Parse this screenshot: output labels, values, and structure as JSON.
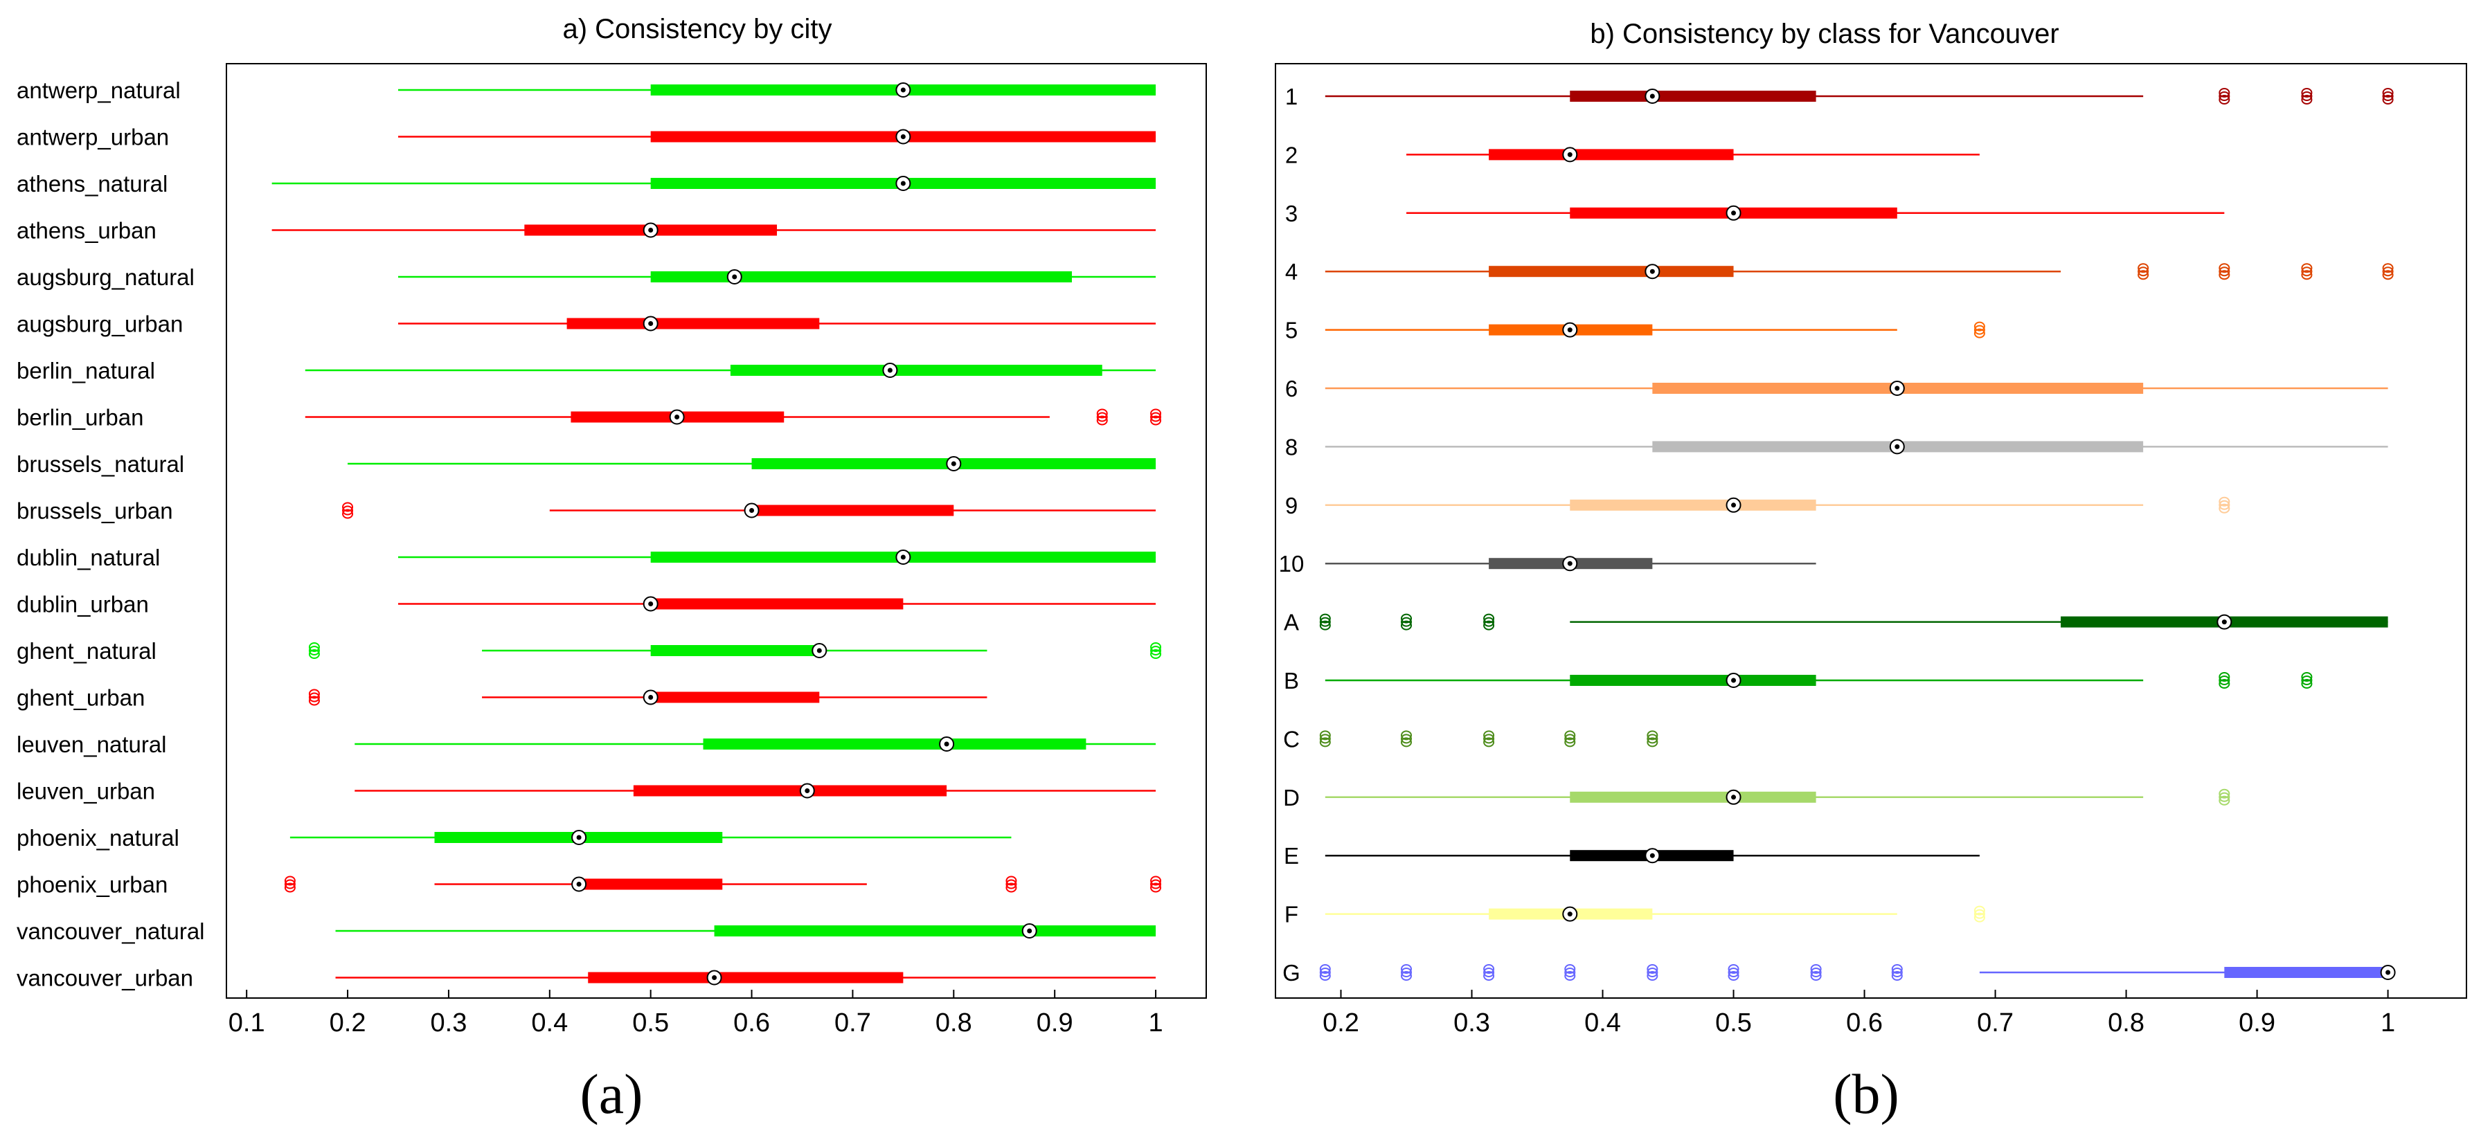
{
  "chart_data": [
    {
      "type": "boxplot-horizontal",
      "title": "a) Consistency by city",
      "panel_label": "(a)",
      "xlim": [
        0.08,
        1.05
      ],
      "xticks": [
        0.1,
        0.2,
        0.3,
        0.4,
        0.5,
        0.6,
        0.7,
        0.8,
        0.9,
        1
      ],
      "xtick_labels": [
        "0.1",
        "0.2",
        "0.3",
        "0.4",
        "0.5",
        "0.6",
        "0.7",
        "0.8",
        "0.9",
        "1"
      ],
      "rows": [
        {
          "label": "antwerp_natural",
          "color": "#00ee00",
          "whisker_lo": 0.25,
          "q1": 0.5,
          "median": 0.75,
          "q3": 1.0,
          "whisker_hi": 1.0,
          "outliers": []
        },
        {
          "label": "antwerp_urban",
          "color": "#ff0000",
          "whisker_lo": 0.25,
          "q1": 0.5,
          "median": 0.75,
          "q3": 1.0,
          "whisker_hi": 1.0,
          "outliers": []
        },
        {
          "label": "athens_natural",
          "color": "#00ee00",
          "whisker_lo": 0.125,
          "q1": 0.5,
          "median": 0.75,
          "q3": 1.0,
          "whisker_hi": 1.0,
          "outliers": []
        },
        {
          "label": "athens_urban",
          "color": "#ff0000",
          "whisker_lo": 0.125,
          "q1": 0.375,
          "median": 0.5,
          "q3": 0.625,
          "whisker_hi": 1.0,
          "outliers": []
        },
        {
          "label": "augsburg_natural",
          "color": "#00ee00",
          "whisker_lo": 0.25,
          "q1": 0.5,
          "median": 0.583,
          "q3": 0.917,
          "whisker_hi": 1.0,
          "outliers": []
        },
        {
          "label": "augsburg_urban",
          "color": "#ff0000",
          "whisker_lo": 0.25,
          "q1": 0.417,
          "median": 0.5,
          "q3": 0.667,
          "whisker_hi": 1.0,
          "outliers": []
        },
        {
          "label": "berlin_natural",
          "color": "#00ee00",
          "whisker_lo": 0.158,
          "q1": 0.579,
          "median": 0.737,
          "q3": 0.947,
          "whisker_hi": 1.0,
          "outliers": []
        },
        {
          "label": "berlin_urban",
          "color": "#ff0000",
          "whisker_lo": 0.158,
          "q1": 0.421,
          "median": 0.526,
          "q3": 0.632,
          "whisker_hi": 0.895,
          "outliers": [
            0.947,
            1.0
          ]
        },
        {
          "label": "brussels_natural",
          "color": "#00ee00",
          "whisker_lo": 0.2,
          "q1": 0.6,
          "median": 0.8,
          "q3": 1.0,
          "whisker_hi": 1.0,
          "outliers": []
        },
        {
          "label": "brussels_urban",
          "color": "#ff0000",
          "whisker_lo": 0.4,
          "q1": 0.6,
          "median": 0.6,
          "q3": 0.8,
          "whisker_hi": 1.0,
          "outliers": [
            0.2
          ]
        },
        {
          "label": "dublin_natural",
          "color": "#00ee00",
          "whisker_lo": 0.25,
          "q1": 0.5,
          "median": 0.75,
          "q3": 1.0,
          "whisker_hi": 1.0,
          "outliers": []
        },
        {
          "label": "dublin_urban",
          "color": "#ff0000",
          "whisker_lo": 0.25,
          "q1": 0.5,
          "median": 0.5,
          "q3": 0.75,
          "whisker_hi": 1.0,
          "outliers": []
        },
        {
          "label": "ghent_natural",
          "color": "#00ee00",
          "whisker_lo": 0.333,
          "q1": 0.5,
          "median": 0.667,
          "q3": 0.667,
          "whisker_hi": 0.833,
          "outliers": [
            0.167,
            1.0
          ]
        },
        {
          "label": "ghent_urban",
          "color": "#ff0000",
          "whisker_lo": 0.333,
          "q1": 0.5,
          "median": 0.5,
          "q3": 0.667,
          "whisker_hi": 0.833,
          "outliers": [
            0.167
          ]
        },
        {
          "label": "leuven_natural",
          "color": "#00ee00",
          "whisker_lo": 0.207,
          "q1": 0.552,
          "median": 0.793,
          "q3": 0.931,
          "whisker_hi": 1.0,
          "outliers": []
        },
        {
          "label": "leuven_urban",
          "color": "#ff0000",
          "whisker_lo": 0.207,
          "q1": 0.483,
          "median": 0.655,
          "q3": 0.793,
          "whisker_hi": 1.0,
          "outliers": []
        },
        {
          "label": "phoenix_natural",
          "color": "#00ee00",
          "whisker_lo": 0.143,
          "q1": 0.286,
          "median": 0.429,
          "q3": 0.571,
          "whisker_hi": 0.857,
          "outliers": []
        },
        {
          "label": "phoenix_urban",
          "color": "#ff0000",
          "whisker_lo": 0.286,
          "q1": 0.429,
          "median": 0.429,
          "q3": 0.571,
          "whisker_hi": 0.714,
          "outliers": [
            0.143,
            0.857,
            1.0
          ]
        },
        {
          "label": "vancouver_natural",
          "color": "#00ee00",
          "whisker_lo": 0.188,
          "q1": 0.563,
          "median": 0.875,
          "q3": 1.0,
          "whisker_hi": 1.0,
          "outliers": []
        },
        {
          "label": "vancouver_urban",
          "color": "#ff0000",
          "whisker_lo": 0.188,
          "q1": 0.438,
          "median": 0.563,
          "q3": 0.75,
          "whisker_hi": 1.0,
          "outliers": []
        }
      ]
    },
    {
      "type": "boxplot-horizontal",
      "title": "b) Consistency by class for Vancouver",
      "panel_label": "(b)",
      "xlim": [
        0.15,
        1.06
      ],
      "xticks": [
        0.2,
        0.3,
        0.4,
        0.5,
        0.6,
        0.7,
        0.8,
        0.9,
        1
      ],
      "xtick_labels": [
        "0.2",
        "0.3",
        "0.4",
        "0.5",
        "0.6",
        "0.7",
        "0.8",
        "0.9",
        "1"
      ],
      "rows": [
        {
          "label": "1",
          "color": "#a50000",
          "whisker_lo": 0.188,
          "q1": 0.375,
          "median": 0.438,
          "q3": 0.563,
          "whisker_hi": 0.813,
          "outliers": [
            0.875,
            0.938,
            1.0
          ]
        },
        {
          "label": "2",
          "color": "#ff0000",
          "whisker_lo": 0.25,
          "q1": 0.313,
          "median": 0.375,
          "q3": 0.5,
          "whisker_hi": 0.688,
          "outliers": []
        },
        {
          "label": "3",
          "color": "#ff0000",
          "whisker_lo": 0.25,
          "q1": 0.375,
          "median": 0.5,
          "q3": 0.625,
          "whisker_hi": 0.875,
          "outliers": []
        },
        {
          "label": "4",
          "color": "#dd4400",
          "whisker_lo": 0.188,
          "q1": 0.313,
          "median": 0.438,
          "q3": 0.5,
          "whisker_hi": 0.75,
          "outliers": [
            0.813,
            0.875,
            0.938,
            1.0
          ]
        },
        {
          "label": "5",
          "color": "#ff6600",
          "whisker_lo": 0.188,
          "q1": 0.313,
          "median": 0.375,
          "q3": 0.438,
          "whisker_hi": 0.625,
          "outliers": [
            0.688
          ]
        },
        {
          "label": "6",
          "color": "#ff9955",
          "whisker_lo": 0.188,
          "q1": 0.438,
          "median": 0.625,
          "q3": 0.813,
          "whisker_hi": 1.0,
          "outliers": []
        },
        {
          "label": "8",
          "color": "#bbbbbb",
          "whisker_lo": 0.188,
          "q1": 0.438,
          "median": 0.625,
          "q3": 0.813,
          "whisker_hi": 1.0,
          "outliers": []
        },
        {
          "label": "9",
          "color": "#ffcc99",
          "whisker_lo": 0.188,
          "q1": 0.375,
          "median": 0.5,
          "q3": 0.563,
          "whisker_hi": 0.813,
          "outliers": [
            0.875
          ]
        },
        {
          "label": "10",
          "color": "#555555",
          "whisker_lo": 0.188,
          "q1": 0.313,
          "median": 0.375,
          "q3": 0.438,
          "whisker_hi": 0.563,
          "outliers": []
        },
        {
          "label": "A",
          "color": "#006600",
          "whisker_lo": 0.375,
          "q1": 0.75,
          "median": 0.875,
          "q3": 1.0,
          "whisker_hi": 1.0,
          "outliers": [
            0.188,
            0.25,
            0.313
          ]
        },
        {
          "label": "B",
          "color": "#00aa00",
          "whisker_lo": 0.188,
          "q1": 0.375,
          "median": 0.5,
          "q3": 0.563,
          "whisker_hi": 0.813,
          "outliers": [
            0.875,
            0.938
          ]
        },
        {
          "label": "C",
          "color": "#4d8c1a",
          "whisker_lo": null,
          "q1": null,
          "median": null,
          "q3": null,
          "whisker_hi": null,
          "outliers": [
            0.188,
            0.25,
            0.313,
            0.375,
            0.438
          ]
        },
        {
          "label": "D",
          "color": "#a6d96a",
          "whisker_lo": 0.188,
          "q1": 0.375,
          "median": 0.5,
          "q3": 0.563,
          "whisker_hi": 0.813,
          "outliers": [
            0.875
          ]
        },
        {
          "label": "E",
          "color": "#000000",
          "whisker_lo": 0.188,
          "q1": 0.375,
          "median": 0.438,
          "q3": 0.5,
          "whisker_hi": 0.688,
          "outliers": []
        },
        {
          "label": "F",
          "color": "#ffff99",
          "whisker_lo": 0.188,
          "q1": 0.313,
          "median": 0.375,
          "q3": 0.438,
          "whisker_hi": 0.625,
          "outliers": [
            0.688
          ]
        },
        {
          "label": "G",
          "color": "#6666ff",
          "whisker_lo": 0.688,
          "q1": 0.875,
          "median": 1.0,
          "q3": 1.0,
          "whisker_hi": 1.0,
          "outliers": [
            0.188,
            0.25,
            0.313,
            0.375,
            0.438,
            0.5,
            0.563,
            0.625
          ]
        }
      ]
    }
  ]
}
